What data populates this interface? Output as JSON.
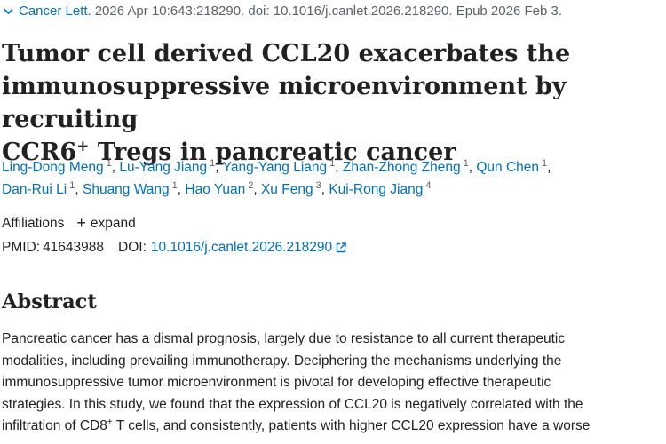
{
  "citation": {
    "journal": "Cancer Lett.",
    "details": "2026 Apr 10:643:218290. doi: 10.1016/j.canlet.2026.218290. Epub 2026 Feb 3."
  },
  "title": {
    "line1": "Tumor cell derived CCL20 exacerbates the",
    "line2": "immunosuppressive microenvironment by recruiting",
    "line3_pre": "CCR6",
    "line3_sup": "+",
    "line3_post": " Tregs in pancreatic cancer"
  },
  "authors": [
    {
      "name": "Ling-Dong Meng",
      "aff": "1"
    },
    {
      "name": "Lu-Yang Jiang",
      "aff": "1"
    },
    {
      "name": "Yang-Yang Liang",
      "aff": "1"
    },
    {
      "name": "Zhan-Zhong Zheng",
      "aff": "1"
    },
    {
      "name": "Qun Chen",
      "aff": "1"
    },
    {
      "name": "Dan-Rui Li",
      "aff": "1"
    },
    {
      "name": "Shuang Wang",
      "aff": "1"
    },
    {
      "name": "Hao Yuan",
      "aff": "2"
    },
    {
      "name": "Xu Feng",
      "aff": "3"
    },
    {
      "name": "Kui-Rong Jiang",
      "aff": "4"
    }
  ],
  "affiliations": {
    "label": "Affiliations",
    "toggle_label": "expand"
  },
  "ids": {
    "pmid_label": "PMID:",
    "pmid": "41643988",
    "doi_label": "DOI:",
    "doi": "10.1016/j.canlet.2026.218290"
  },
  "abstract": {
    "heading": "Abstract",
    "line1": "Pancreatic cancer has a dismal prognosis, largely due to resistance to all current therapeutic",
    "line2": "modalities, including prevailing immunotherapy. Deciphering the mechanisms underlying the",
    "line3": "immunosuppressive tumor microenvironment is pivotal for developing effective therapeutic",
    "line4": "strategies. In this study, we found that the expression of CCL20 is negatively correlated with the",
    "line5_pre": "infiltration of CD8",
    "line5_sup": "+",
    "line5_post": " T cells, and consistently, patients with higher CCL20 expression have a worse"
  },
  "colors": {
    "link": "#0071bc",
    "text": "#212121",
    "muted": "#5b616b"
  }
}
